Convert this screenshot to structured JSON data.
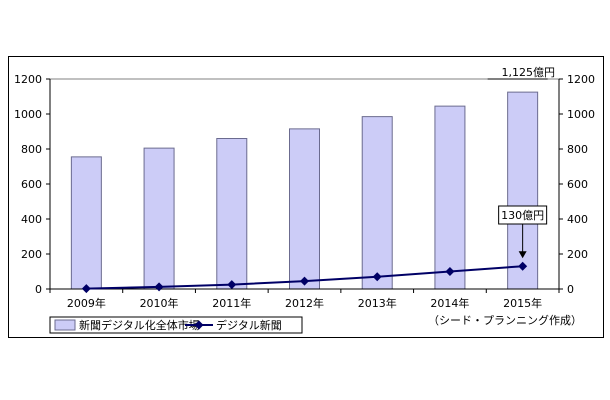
{
  "chart_data": {
    "type": "bar+line",
    "categories": [
      "2009年",
      "2010年",
      "2011年",
      "2012年",
      "2013年",
      "2014年",
      "2015年"
    ],
    "series": [
      {
        "name": "新聞デジタル化全体市場",
        "kind": "bar",
        "values": [
          755,
          805,
          860,
          915,
          985,
          1045,
          1125
        ],
        "color": "#ccccf7",
        "border": "#6b6b8f"
      },
      {
        "name": "デジタル新聞",
        "kind": "line",
        "values": [
          2,
          12,
          25,
          45,
          70,
          100,
          130
        ],
        "color": "#000066",
        "marker": "diamond"
      }
    ],
    "y_left": {
      "range": [
        0,
        1200
      ],
      "ticks": [
        "0",
        "200",
        "400",
        "600",
        "800",
        "1000",
        "1200"
      ]
    },
    "y_right": {
      "range": [
        0,
        1200
      ],
      "ticks": [
        "0",
        "200",
        "400",
        "600",
        "800",
        "1000",
        "1200"
      ]
    },
    "annotations": {
      "top_bar_label": "1,125億円",
      "line_end_label": "130億円"
    },
    "source_note": "（シード・プランニング作成）",
    "grid": false,
    "legend_position": "bottom-left"
  }
}
